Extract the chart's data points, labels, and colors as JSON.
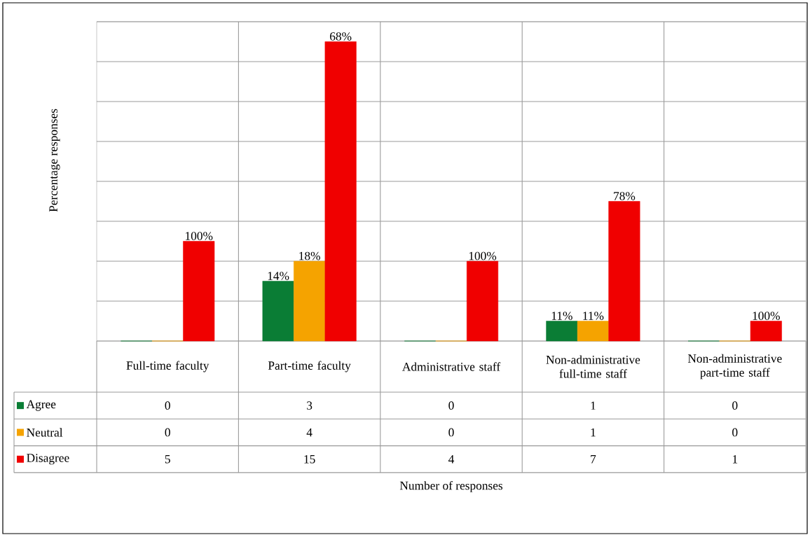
{
  "chart_data": {
    "type": "bar",
    "ylabel": "Percentage responses",
    "categories": [
      "Full-time faculty",
      "Part-time faculty",
      "Administrative staff",
      "Non-administrative full-time staff",
      "Non-administrative part-time staff"
    ],
    "series": [
      {
        "name": "Agree",
        "color": "#0a7d35",
        "values": [
          0,
          3,
          0,
          1,
          0
        ]
      },
      {
        "name": "Neutral",
        "color": "#f5a300",
        "values": [
          0,
          4,
          0,
          1,
          0
        ]
      },
      {
        "name": "Disagree",
        "color": "#f00000",
        "values": [
          5,
          15,
          4,
          7,
          1
        ]
      }
    ],
    "annotations": [
      "100%",
      "14%",
      "18%",
      "68%",
      "100%",
      "11%",
      "11%",
      "78%",
      "100%",
      "Number of responses"
    ],
    "ylim": [
      0,
      16
    ],
    "yticks": [
      {
        "value": 0,
        "label": null
      },
      {
        "value": 2,
        "label": null
      },
      {
        "value": 4,
        "label": null
      },
      {
        "value": 6,
        "label": null
      },
      {
        "value": 8,
        "label": null
      },
      {
        "value": 10,
        "label": null
      },
      {
        "value": 12,
        "label": null
      },
      {
        "value": 14,
        "label": null
      },
      {
        "value": 16,
        "label": null
      }
    ],
    "grid": "y",
    "legend": "bottom left",
    "tick_labels": "x",
    "data_labels": true
  }
}
